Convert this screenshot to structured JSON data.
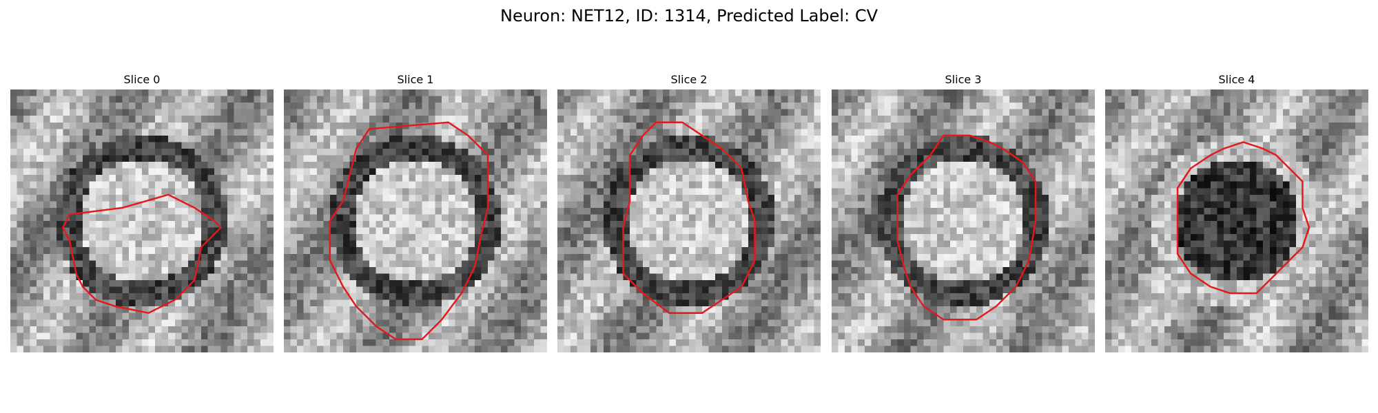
{
  "figure": {
    "title": "Neuron: NET12, ID: 1314, Predicted Label: CV"
  },
  "colors": {
    "contour": "#e4191c",
    "colormap": "gray"
  },
  "panels": [
    {
      "title": "Slice 0",
      "center_brightness": "bright",
      "ring": "dark",
      "seed": 11,
      "contour": [
        [
          17,
          18
        ],
        [
          9,
          19
        ],
        [
          8,
          21
        ],
        [
          9,
          23
        ],
        [
          10,
          28
        ],
        [
          11,
          30
        ],
        [
          13,
          32
        ],
        [
          16,
          33
        ],
        [
          21,
          34
        ],
        [
          25,
          32
        ],
        [
          28,
          29
        ],
        [
          29,
          24
        ],
        [
          32,
          21
        ],
        [
          31,
          20
        ],
        [
          28,
          18
        ],
        [
          26,
          17
        ],
        [
          24,
          16
        ]
      ]
    },
    {
      "title": "Slice 1",
      "center_brightness": "bright",
      "ring": "dark",
      "seed": 23,
      "contour": [
        [
          11,
          9
        ],
        [
          10,
          13
        ],
        [
          9,
          17
        ],
        [
          7,
          20
        ],
        [
          7,
          26
        ],
        [
          9,
          30
        ],
        [
          11,
          33
        ],
        [
          14,
          36
        ],
        [
          17,
          38
        ],
        [
          21,
          38
        ],
        [
          24,
          35
        ],
        [
          27,
          31
        ],
        [
          29,
          27
        ],
        [
          30,
          22
        ],
        [
          31,
          18
        ],
        [
          31,
          10
        ],
        [
          28,
          7
        ],
        [
          25,
          5
        ],
        [
          13,
          6
        ]
      ]
    },
    {
      "title": "Slice 2",
      "center_brightness": "bright",
      "ring": "dark",
      "seed": 37,
      "contour": [
        [
          13,
          7
        ],
        [
          11,
          10
        ],
        [
          11,
          17
        ],
        [
          10,
          21
        ],
        [
          10,
          28
        ],
        [
          13,
          31
        ],
        [
          17,
          34
        ],
        [
          22,
          34
        ],
        [
          25,
          32
        ],
        [
          28,
          30
        ],
        [
          30,
          26
        ],
        [
          30,
          20
        ],
        [
          29,
          17
        ],
        [
          28,
          12
        ],
        [
          25,
          9
        ],
        [
          22,
          7
        ],
        [
          19,
          5
        ],
        [
          15,
          5
        ]
      ]
    },
    {
      "title": "Slice 3",
      "center_brightness": "bright",
      "ring": "dark",
      "seed": 49,
      "contour": [
        [
          15,
          10
        ],
        [
          12,
          13
        ],
        [
          10,
          16
        ],
        [
          10,
          23
        ],
        [
          11,
          27
        ],
        [
          12,
          30
        ],
        [
          14,
          33
        ],
        [
          17,
          35
        ],
        [
          22,
          35
        ],
        [
          25,
          33
        ],
        [
          28,
          30
        ],
        [
          30,
          26
        ],
        [
          31,
          20
        ],
        [
          31,
          14
        ],
        [
          29,
          11
        ],
        [
          26,
          9
        ],
        [
          24,
          8
        ],
        [
          21,
          7
        ],
        [
          17,
          7
        ]
      ]
    },
    {
      "title": "Slice 4",
      "center_brightness": "dark",
      "ring": "bright",
      "seed": 61,
      "contour": [
        [
          13,
          12
        ],
        [
          11,
          15
        ],
        [
          11,
          25
        ],
        [
          13,
          28
        ],
        [
          16,
          30
        ],
        [
          19,
          31
        ],
        [
          23,
          31
        ],
        [
          25,
          29
        ],
        [
          28,
          26
        ],
        [
          30,
          24
        ],
        [
          31,
          21
        ],
        [
          30,
          18
        ],
        [
          30,
          14
        ],
        [
          28,
          12
        ],
        [
          26,
          10
        ],
        [
          24,
          9
        ],
        [
          21,
          8
        ],
        [
          18,
          9
        ],
        [
          16,
          10
        ]
      ]
    }
  ]
}
